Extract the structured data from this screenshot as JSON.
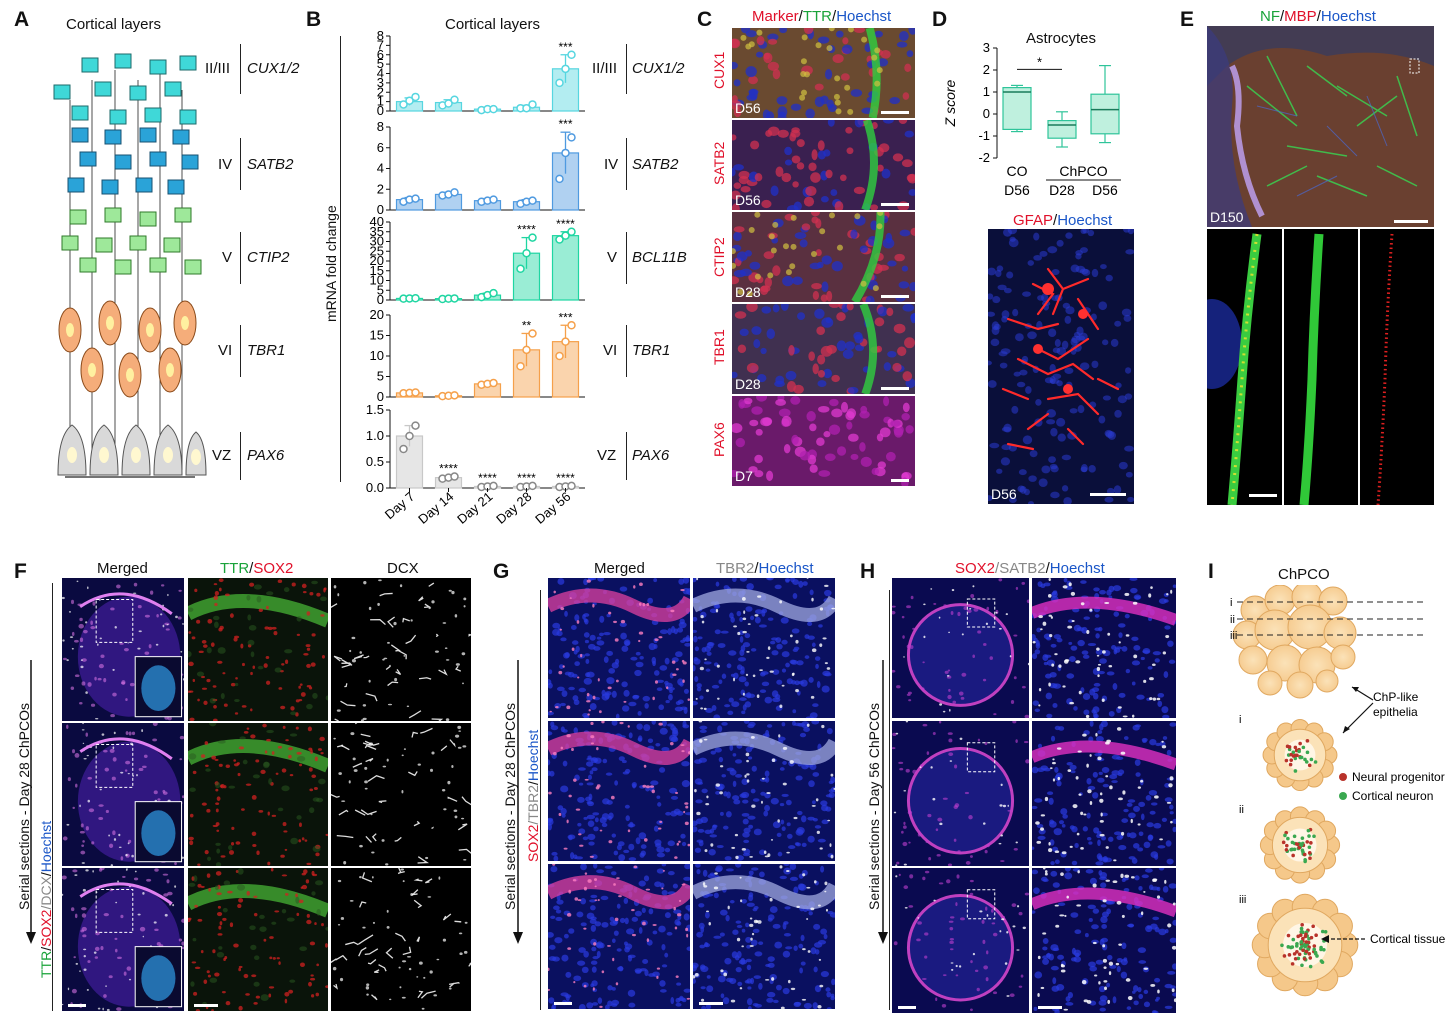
{
  "panels": {
    "A": {
      "letter": "A",
      "title": "Cortical layers",
      "layers": [
        {
          "label": "II/III",
          "gene": "CUX1/2"
        },
        {
          "label": "IV",
          "gene": "SATB2"
        },
        {
          "label": "V",
          "gene": "CTIP2"
        },
        {
          "label": "VI",
          "gene": "TBR1"
        },
        {
          "label": "VZ",
          "gene": "PAX6"
        }
      ]
    },
    "B": {
      "letter": "B",
      "title": "Cortical layers",
      "ylabel": "mRNA fold change",
      "genes": [
        {
          "label": "II/III",
          "gene": "CUX1/2"
        },
        {
          "label": "IV",
          "gene": "SATB2"
        },
        {
          "label": "V",
          "gene": "BCL11B"
        },
        {
          "label": "VI",
          "gene": "TBR1"
        },
        {
          "label": "VZ",
          "gene": "PAX6"
        }
      ]
    },
    "C": {
      "letter": "C",
      "title_parts": [
        {
          "text": "Marker",
          "color": "#e0102a"
        },
        {
          "text": "/",
          "color": "#111"
        },
        {
          "text": "TTR",
          "color": "#1aa33a"
        },
        {
          "text": "/",
          "color": "#111"
        },
        {
          "text": "Hoechst",
          "color": "#1a56c8"
        }
      ],
      "rows": [
        {
          "marker": "CUX1",
          "day": "D56"
        },
        {
          "marker": "SATB2",
          "day": "D56"
        },
        {
          "marker": "CTIP2",
          "day": "D28"
        },
        {
          "marker": "TBR1",
          "day": "D28"
        },
        {
          "marker": "PAX6",
          "day": "D7"
        }
      ]
    },
    "D": {
      "letter": "D",
      "title": "Astrocytes",
      "ylabel": "Z score",
      "xgroups": [
        "CO",
        "ChPCO"
      ],
      "xdays": [
        "D56",
        "D28",
        "D56"
      ],
      "sig": "*",
      "stain_parts": [
        {
          "text": "GFAP",
          "color": "#e0102a"
        },
        {
          "text": "/",
          "color": "#111"
        },
        {
          "text": "Hoechst",
          "color": "#1a56c8"
        }
      ],
      "day": "D56"
    },
    "E": {
      "letter": "E",
      "title_parts": [
        {
          "text": "NF",
          "color": "#1aa33a"
        },
        {
          "text": "/",
          "color": "#111"
        },
        {
          "text": "MBP",
          "color": "#e0102a"
        },
        {
          "text": "/",
          "color": "#111"
        },
        {
          "text": "Hoechst",
          "color": "#1a56c8"
        }
      ],
      "day": "D150"
    },
    "F": {
      "letter": "F",
      "col_merged": "Merged",
      "col2_parts": [
        {
          "text": "TTR",
          "color": "#1aa33a"
        },
        {
          "text": "/",
          "color": "#111"
        },
        {
          "text": "SOX2",
          "color": "#e0102a"
        }
      ],
      "col3": "DCX",
      "side_parts": [
        {
          "text": "TTR",
          "color": "#1aa33a"
        },
        {
          "text": "/",
          "color": "#111"
        },
        {
          "text": "SOX2",
          "color": "#e0102a"
        },
        {
          "text": "/",
          "color": "#888"
        },
        {
          "text": "DCX",
          "color": "#888"
        },
        {
          "text": "/",
          "color": "#111"
        },
        {
          "text": "Hoechst",
          "color": "#1a56c8"
        }
      ],
      "side_label": "Serial sections - Day 28 ChPCOs"
    },
    "G": {
      "letter": "G",
      "col_merged": "Merged",
      "col2_parts": [
        {
          "text": "TBR2",
          "color": "#888"
        },
        {
          "text": "/",
          "color": "#111"
        },
        {
          "text": "Hoechst",
          "color": "#1a56c8"
        }
      ],
      "side_parts": [
        {
          "text": "SOX2",
          "color": "#e0102a"
        },
        {
          "text": "/",
          "color": "#888"
        },
        {
          "text": "TBR2",
          "color": "#888"
        },
        {
          "text": "/",
          "color": "#111"
        },
        {
          "text": "Hoechst",
          "color": "#1a56c8"
        }
      ],
      "side_label": "Serial sections - Day 28 ChPCOs"
    },
    "H": {
      "letter": "H",
      "title_parts": [
        {
          "text": "SOX2",
          "color": "#e0102a"
        },
        {
          "text": "/",
          "color": "#888"
        },
        {
          "text": "SATB2",
          "color": "#888"
        },
        {
          "text": "/",
          "color": "#111"
        },
        {
          "text": "Hoechst",
          "color": "#1a56c8"
        }
      ],
      "side_label": "Serial sections - Day 56 ChPCOs"
    },
    "I": {
      "letter": "I",
      "title": "ChPCO",
      "levels": [
        "i",
        "ii",
        "iii"
      ],
      "epithelia_label": "ChP-like epithelia",
      "legend_progenitor": "Neural progenitor",
      "legend_neuron": "Cortical neuron",
      "tissue_label": "Cortical tissue",
      "progenitor_color": "#b8322a",
      "neuron_color": "#3aa850"
    }
  },
  "chart_data": [
    {
      "type": "bar",
      "panel": "B",
      "categories": [
        "Day 7",
        "Day 14",
        "Day 21",
        "Day 28",
        "Day 56"
      ],
      "subplots": [
        {
          "gene": "CUX1/2",
          "color": "#56d6e0",
          "ylim": [
            0,
            8
          ],
          "yticks": [
            0,
            1,
            2,
            3,
            4,
            5,
            6,
            7,
            8
          ],
          "values": [
            1.0,
            0.9,
            0.2,
            0.4,
            4.5
          ],
          "points": [
            [
              0.7,
              1.1,
              1.5
            ],
            [
              0.6,
              0.8,
              1.2
            ],
            [
              0.1,
              0.2,
              0.2
            ],
            [
              0.3,
              0.3,
              0.7
            ],
            [
              3.0,
              4.5,
              6.0
            ]
          ],
          "err": [
            0.4,
            0.3,
            0.1,
            0.2,
            1.5
          ],
          "sig": [
            "",
            "",
            "",
            "",
            "***"
          ]
        },
        {
          "gene": "SATB2",
          "color": "#4f9ae0",
          "ylim": [
            0,
            8
          ],
          "yticks": [
            0,
            2,
            4,
            6,
            8
          ],
          "values": [
            1.0,
            1.5,
            0.9,
            0.8,
            5.5
          ],
          "points": [
            [
              0.8,
              1.0,
              1.1
            ],
            [
              1.4,
              1.5,
              1.7
            ],
            [
              0.8,
              0.9,
              1.0
            ],
            [
              0.6,
              0.8,
              0.9
            ],
            [
              3.0,
              5.5,
              7.0
            ]
          ],
          "err": [
            0.2,
            0.2,
            0.2,
            0.2,
            2.0
          ],
          "sig": [
            "",
            "",
            "",
            "",
            "***"
          ]
        },
        {
          "gene": "BCL11B",
          "color": "#1fd6a2",
          "ylim": [
            0,
            40
          ],
          "yticks": [
            0,
            5,
            10,
            15,
            20,
            25,
            30,
            35,
            40
          ],
          "values": [
            0.8,
            0.7,
            2.5,
            24,
            33
          ],
          "points": [
            [
              0.7,
              0.8,
              0.9
            ],
            [
              0.5,
              0.7,
              0.8
            ],
            [
              1.5,
              2.5,
              3.5
            ],
            [
              16,
              24,
              32
            ],
            [
              31,
              33,
              35
            ]
          ],
          "err": [
            0.1,
            0.1,
            1.0,
            8.0,
            2.0
          ],
          "sig": [
            "",
            "",
            "",
            "****",
            "****"
          ]
        },
        {
          "gene": "TBR1",
          "color": "#f5a04a",
          "ylim": [
            0,
            20
          ],
          "yticks": [
            0,
            5,
            10,
            15,
            20
          ],
          "values": [
            1.0,
            0.3,
            3.2,
            11.5,
            13.5
          ],
          "points": [
            [
              0.9,
              1.0,
              1.1
            ],
            [
              0.2,
              0.3,
              0.4
            ],
            [
              3.0,
              3.2,
              3.4
            ],
            [
              7.5,
              11.5,
              15.5
            ],
            [
              10.0,
              13.5,
              17.5
            ]
          ],
          "err": [
            0.1,
            0.1,
            0.2,
            4.0,
            4.0
          ],
          "sig": [
            "",
            "",
            "",
            "**",
            "***"
          ]
        },
        {
          "gene": "PAX6",
          "color": "#c8c8c8",
          "ylim": [
            0,
            1.5
          ],
          "yticks": [
            0,
            0.5,
            1.0,
            1.5
          ],
          "values": [
            1.0,
            0.2,
            0.03,
            0.03,
            0.03
          ],
          "points": [
            [
              0.75,
              1.0,
              1.2
            ],
            [
              0.18,
              0.2,
              0.22
            ],
            [
              0.02,
              0.03,
              0.04
            ],
            [
              0.02,
              0.03,
              0.04
            ],
            [
              0.02,
              0.03,
              0.04
            ]
          ],
          "err": [
            0.2,
            0.02,
            0.01,
            0.01,
            0.01
          ],
          "sig": [
            "",
            "****",
            "****",
            "****",
            "****"
          ]
        }
      ]
    },
    {
      "type": "box",
      "panel": "D",
      "categories": [
        "CO D56",
        "ChPCO D28",
        "ChPCO D56"
      ],
      "ylim": [
        -2,
        3
      ],
      "yticks": [
        -2,
        -1,
        0,
        1,
        2,
        3
      ],
      "boxes": [
        {
          "min": -0.8,
          "q1": -0.7,
          "median": 1.0,
          "q3": 1.2,
          "max": 1.3
        },
        {
          "min": -1.5,
          "q1": -1.1,
          "median": -0.5,
          "q3": -0.3,
          "max": 0.1
        },
        {
          "min": -1.3,
          "q1": -0.9,
          "median": 0.2,
          "q3": 0.9,
          "max": 2.2
        }
      ],
      "color": "#2fc49a",
      "fill": "#bff0de"
    }
  ]
}
